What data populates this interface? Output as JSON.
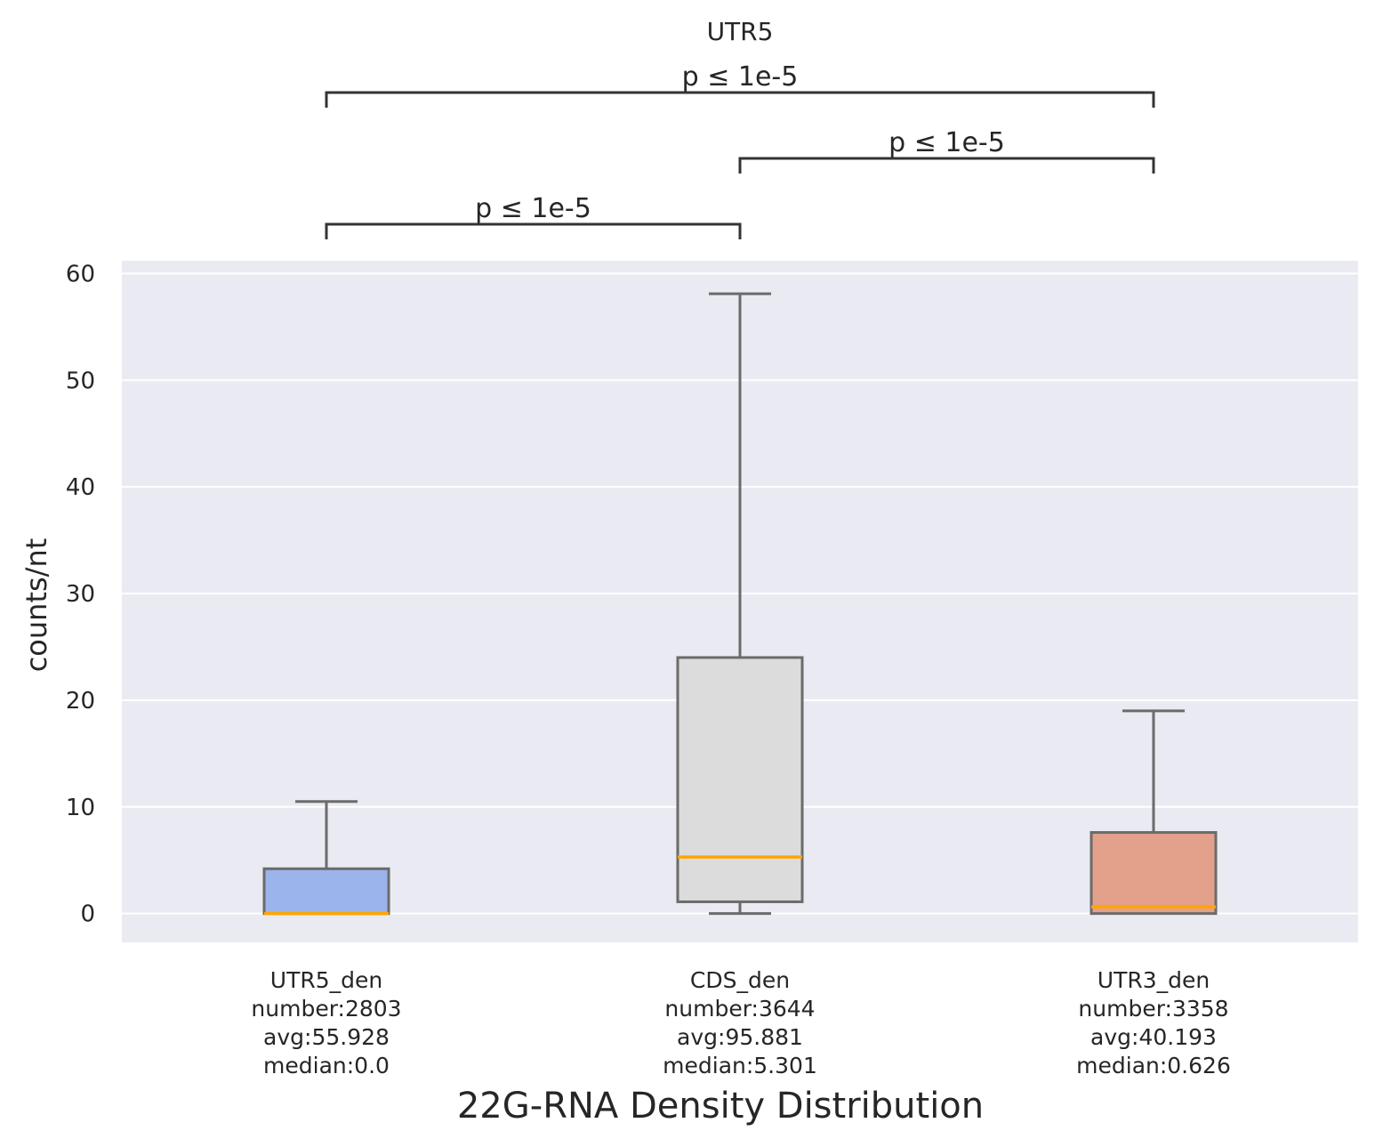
{
  "chart_data": {
    "type": "box",
    "title": "UTR5",
    "xlabel": "22G-RNA Density Distribution",
    "ylabel": "counts/nt",
    "ylim": [
      -2.7,
      61.2
    ],
    "yticks": [
      0,
      10,
      20,
      30,
      40,
      50,
      60
    ],
    "grid": true,
    "background": "#eaeaf2",
    "median_color": "#ffa500",
    "box_edge_color": "#6b6b6b",
    "categories": [
      {
        "label_lines": [
          "UTR5_den",
          "number:2803",
          "avg:55.928",
          "median:0.0"
        ],
        "whisker_low": 0.0,
        "q1": 0.0,
        "median": 0.0,
        "q3": 4.2,
        "whisker_high": 10.5,
        "color": "#9bb4ec"
      },
      {
        "label_lines": [
          "CDS_den",
          "number:3644",
          "avg:95.881",
          "median:5.301"
        ],
        "whisker_low": 0.0,
        "q1": 1.1,
        "median": 5.301,
        "q3": 24.0,
        "whisker_high": 58.1,
        "color": "#dcdcdc"
      },
      {
        "label_lines": [
          "UTR3_den",
          "number:3358",
          "avg:40.193",
          "median:0.626"
        ],
        "whisker_low": 0.0,
        "q1": 0.0,
        "median": 0.626,
        "q3": 7.6,
        "whisker_high": 19.0,
        "color": "#e3a08a"
      }
    ],
    "comparisons": [
      {
        "from": 0,
        "to": 1,
        "label": "p ≤ 1e-5",
        "level": 0
      },
      {
        "from": 1,
        "to": 2,
        "label": "p ≤ 1e-5",
        "level": 1
      },
      {
        "from": 0,
        "to": 2,
        "label": "p ≤ 1e-5",
        "level": 2
      }
    ]
  }
}
